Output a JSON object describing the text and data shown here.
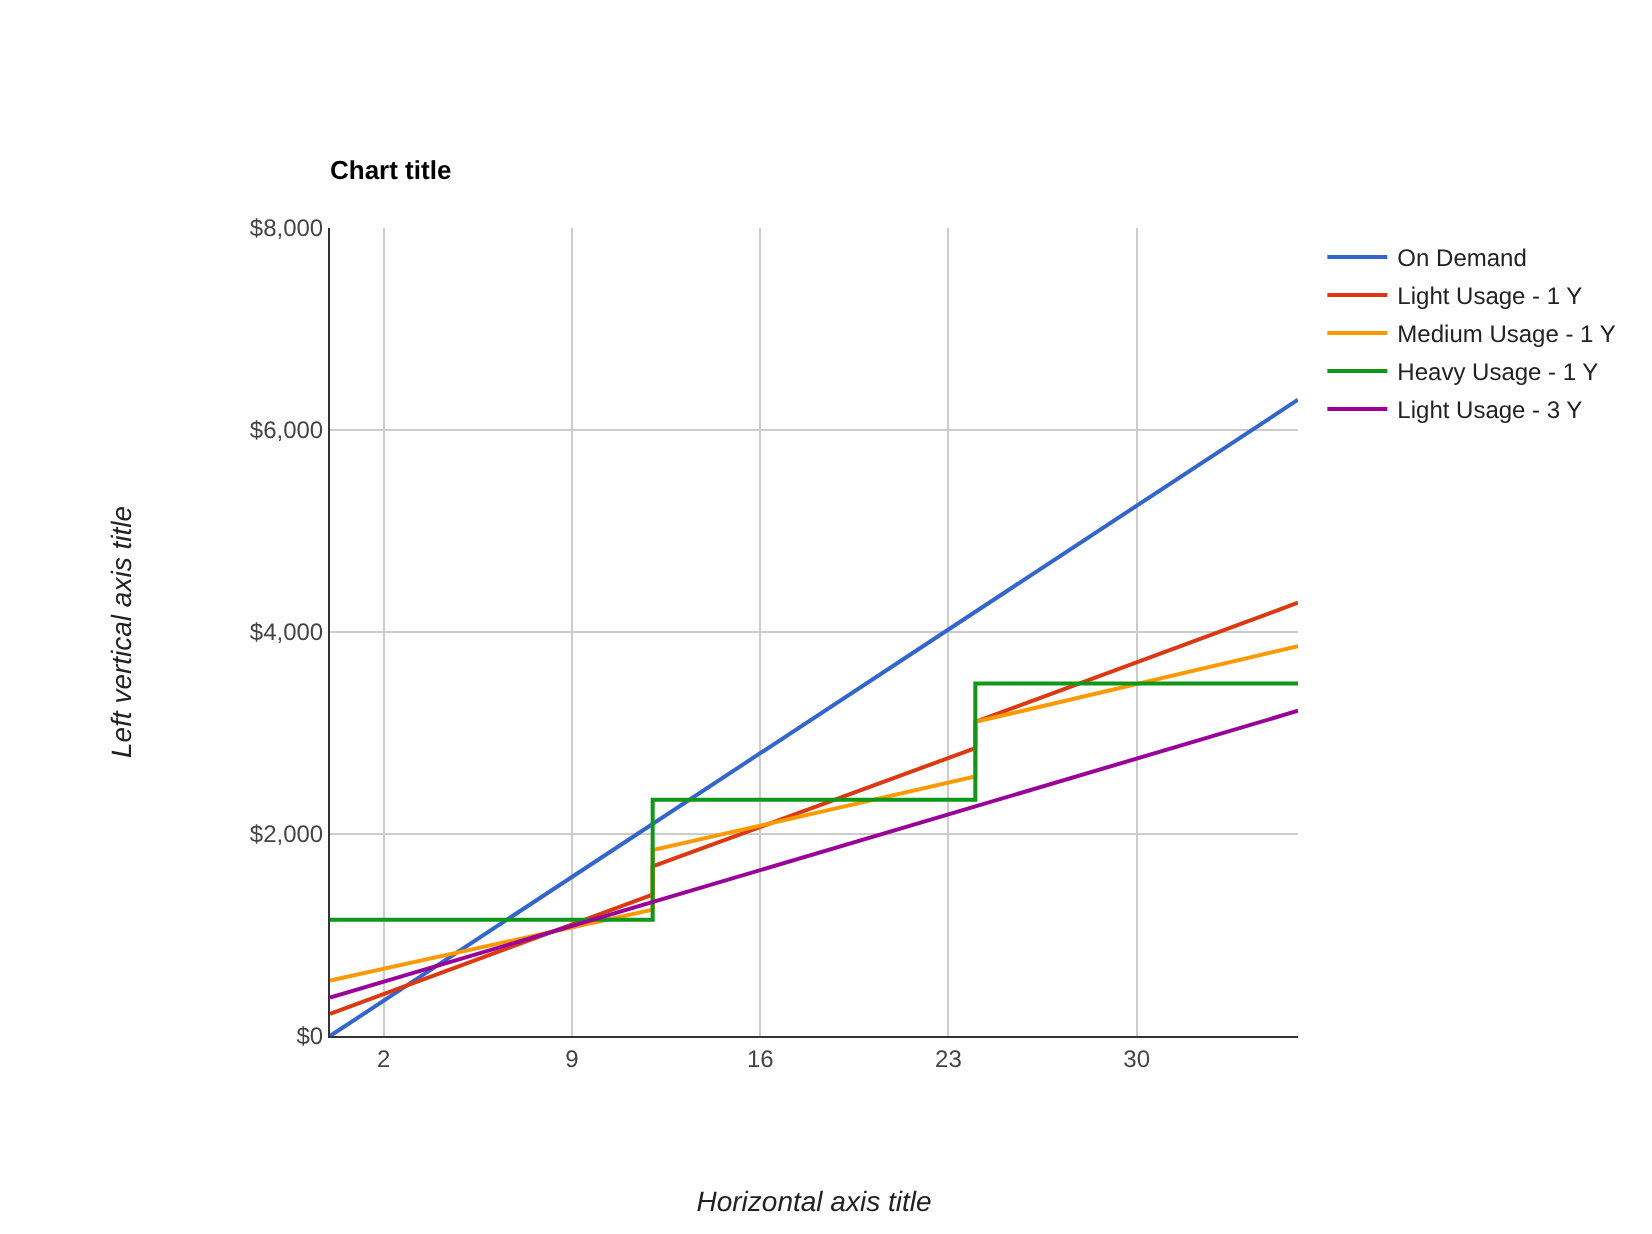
{
  "chart_data": {
    "type": "line",
    "title": "Chart title",
    "xlabel": "Horizontal axis title",
    "ylabel": "Left vertical axis title",
    "xlim": [
      0,
      36
    ],
    "xticks": [
      2,
      9,
      16,
      23,
      30
    ],
    "ylim": [
      0,
      8000
    ],
    "yticks": [
      {
        "value": 0,
        "label": "$0"
      },
      {
        "value": 2000,
        "label": "$2,000"
      },
      {
        "value": 4000,
        "label": "$4,000"
      },
      {
        "value": 6000,
        "label": "$6,000"
      },
      {
        "value": 8000,
        "label": "$8,000"
      }
    ],
    "grid": true,
    "legend": "right",
    "line_style": "solid",
    "marker": "none",
    "series": [
      {
        "name": "On Demand",
        "color": "#3366cc",
        "x": [
          0,
          36
        ],
        "values": [
          0,
          6300
        ]
      },
      {
        "name": "Light Usage - 1 Y",
        "color": "#dc3912",
        "x": [
          0,
          12,
          12,
          24,
          24,
          36
        ],
        "values": [
          220,
          1400,
          1680,
          2850,
          3110,
          4290
        ]
      },
      {
        "name": "Medium Usage - 1 Y",
        "color": "#ff9900",
        "x": [
          0,
          12,
          12,
          24,
          24,
          36
        ],
        "values": [
          550,
          1250,
          1840,
          2570,
          3110,
          3860
        ]
      },
      {
        "name": "Heavy Usage - 1 Y",
        "color": "#109618",
        "x": [
          0,
          12,
          12,
          24,
          24,
          36
        ],
        "values": [
          1150,
          1150,
          2340,
          2340,
          3490,
          3490
        ]
      },
      {
        "name": "Light Usage - 3 Y",
        "color": "#990099",
        "x": [
          0,
          36
        ],
        "values": [
          380,
          3220
        ]
      }
    ]
  }
}
